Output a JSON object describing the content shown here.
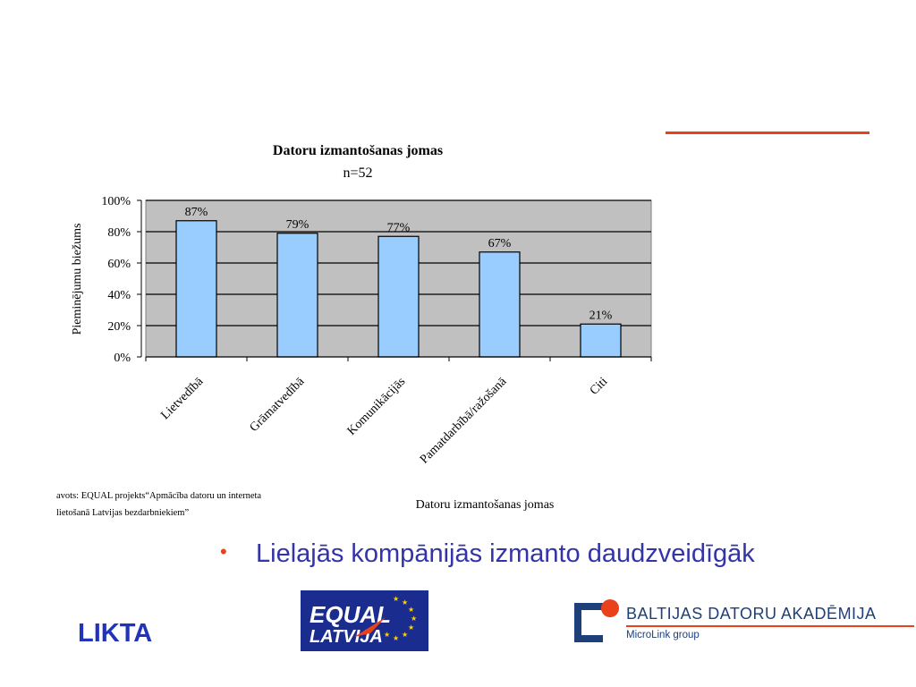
{
  "chart_data": {
    "type": "bar",
    "title": "Datoru izmantošanas jomas",
    "subtitle": "n=52",
    "categories": [
      "Lietvedībā",
      "Grāmatvedībā",
      "Komunikācijās",
      "Pamatdarbībā/ražošanā",
      "Citi"
    ],
    "values": [
      87,
      79,
      77,
      67,
      21
    ],
    "data_labels": [
      "87%",
      "79%",
      "77%",
      "67%",
      "21%"
    ],
    "ylabel": "Pieminējumu biežums",
    "xlabel": "Datoru izmantošanas jomas",
    "ylim": [
      0,
      100
    ],
    "yticks": [
      "0%",
      "20%",
      "40%",
      "60%",
      "80%",
      "100%"
    ],
    "grid": true,
    "plot_background": "#c0c0c0",
    "bar_color": "#99ccff"
  },
  "source": {
    "line1": "avots: EQUAL projekts“Apmācība datoru un interneta",
    "line2": "lietošanā Latvijas bezdarbniekiem”"
  },
  "bullet": {
    "text": "Lielajās kompānijās izmanto daudzveidīgāk"
  },
  "footer": {
    "likta": "LIKTA",
    "equal_logo_text1": "EQUAL",
    "equal_logo_text2": "LATVIJA",
    "bda_name": "BALTIJAS DATORU AKADĒMIJA",
    "bda_sub": "MicroLink group"
  },
  "colors": {
    "accent": "#e8411c",
    "title_blue": "#3333aa",
    "likta_blue": "#2233bb",
    "bda_navy": "#1d3f7a",
    "equal_blue": "#1a2d8f"
  }
}
